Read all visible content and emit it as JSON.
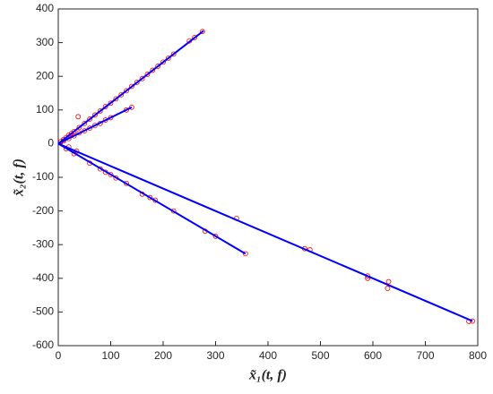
{
  "chart_data": {
    "type": "scatter",
    "xlabel": "x̃₁(t, f)",
    "ylabel": "x̃₂(t, f)",
    "xlim": [
      0,
      800
    ],
    "xticks": [
      0,
      100,
      200,
      300,
      400,
      500,
      600,
      700,
      800
    ],
    "ylim": [
      -600,
      400
    ],
    "yticks": [
      -600,
      -500,
      -400,
      -300,
      -200,
      -100,
      0,
      100,
      200,
      300,
      400
    ],
    "points": {
      "color": "#ff0000",
      "x": [
        5,
        10,
        15,
        20,
        25,
        30,
        40,
        50,
        60,
        70,
        80,
        90,
        100,
        110,
        120,
        130,
        140,
        150,
        160,
        170,
        180,
        190,
        200,
        210,
        220,
        250,
        260,
        275,
        10,
        20,
        30,
        40,
        50,
        60,
        70,
        80,
        90,
        100,
        130,
        140,
        38,
        15,
        30,
        60,
        80,
        90,
        100,
        110,
        130,
        160,
        175,
        185,
        220,
        280,
        300,
        357,
        20,
        35,
        340,
        470,
        480,
        590,
        590,
        628,
        630,
        783,
        790
      ],
      "y": [
        6,
        12,
        18,
        25,
        30,
        36,
        48,
        60,
        73,
        85,
        97,
        110,
        120,
        133,
        145,
        157,
        170,
        182,
        193,
        206,
        218,
        230,
        242,
        254,
        266,
        305,
        315,
        333,
        8,
        15,
        23,
        32,
        38,
        46,
        54,
        60,
        70,
        77,
        100,
        108,
        80,
        -15,
        -30,
        -58,
        -75,
        -85,
        -92,
        -102,
        -118,
        -150,
        -160,
        -168,
        -200,
        -260,
        -275,
        -327,
        -10,
        -22,
        -222,
        -312,
        -315,
        -393,
        -400,
        -430,
        -410,
        -528,
        -527
      ]
    },
    "lines": [
      {
        "color": "#0000ff",
        "x": [
          0,
          277
        ],
        "y": [
          0,
          335
        ]
      },
      {
        "color": "#0000ff",
        "x": [
          0,
          140
        ],
        "y": [
          0,
          108
        ]
      },
      {
        "color": "#0000ff",
        "x": [
          0,
          357
        ],
        "y": [
          0,
          -327
        ]
      },
      {
        "color": "#0000ff",
        "x": [
          0,
          790
        ],
        "y": [
          0,
          -527
        ]
      }
    ]
  }
}
